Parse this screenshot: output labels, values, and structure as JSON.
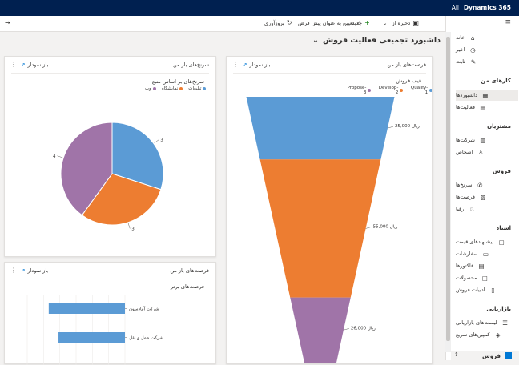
{
  "topbar": {
    "brand": "Dynamics 365",
    "all": "All"
  },
  "commands": {
    "save_as": "ذخیره از",
    "new": "جدید",
    "set_default": "تعیین به عنوان پیش فرض",
    "refresh": "بروزآوری"
  },
  "page": {
    "title": "داشبورد تجمیعی فعالیت فروش"
  },
  "sidebar": {
    "home": "خانه",
    "recent": "اخیر",
    "pinned": "ثابت",
    "section_my_work": "کارهای من",
    "dashboards": "داشبوردها",
    "activities": "فعالیت‌ها",
    "section_customers": "مشتریان",
    "accounts": "شرکت‌ها",
    "contacts": "اشخاص",
    "section_sales": "فروش",
    "leads": "سرنخ‌ها",
    "opportunities": "فرصت‌ها",
    "competitors": "رقبا",
    "section_collateral": "اسناد",
    "quotes": "پیشنهادهای قیمت",
    "orders": "سفارشات",
    "invoices": "فاکتورها",
    "products": "محصولات",
    "sales_literature": "ادبیات فروش",
    "section_marketing": "بازاریابی",
    "marketing_lists": "لیست‌های بازاریابی",
    "quick_campaigns": "کمپین‌های سریع",
    "area": "فروش"
  },
  "cards": {
    "funnel": {
      "title": "فرصت‌های باز من",
      "link": "باز نمودار",
      "chart_title": "قیف فروش"
    },
    "pie": {
      "title": "سرنخ‌های باز من",
      "link": "باز نمودار",
      "chart_title": "سرنخ‌های بر اساس منبع"
    },
    "bar": {
      "title": "فرصت‌های باز من",
      "link": "باز نمودار",
      "chart_title": "فرصت‌های برتر"
    }
  },
  "chart_data": [
    {
      "type": "funnel",
      "title": "قیف فروش",
      "categories": [
        "Qualify-1",
        "Develop-2",
        "Propose-3"
      ],
      "values": [
        25000,
        55000,
        26000
      ],
      "labels": [
        "25,000 ریال",
        "55,000 ریال",
        "26,000 ریال"
      ],
      "colors": [
        "#5b9bd5",
        "#ed7d31",
        "#a074a8"
      ]
    },
    {
      "type": "pie",
      "title": "سرنخ‌های بر اساس منبع",
      "categories": [
        "تبلیغات",
        "نمایشگاه",
        "وب"
      ],
      "values": [
        3,
        3,
        4
      ],
      "colors": [
        "#5b9bd5",
        "#ed7d31",
        "#a074a8"
      ]
    },
    {
      "type": "bar",
      "title": "فرصت‌های برتر",
      "categories": [
        "شرکت آمادسون",
        "شرکت حمل و نقل"
      ],
      "values": [
        0.78,
        0.68
      ],
      "colors": [
        "#5b9bd5"
      ]
    }
  ]
}
